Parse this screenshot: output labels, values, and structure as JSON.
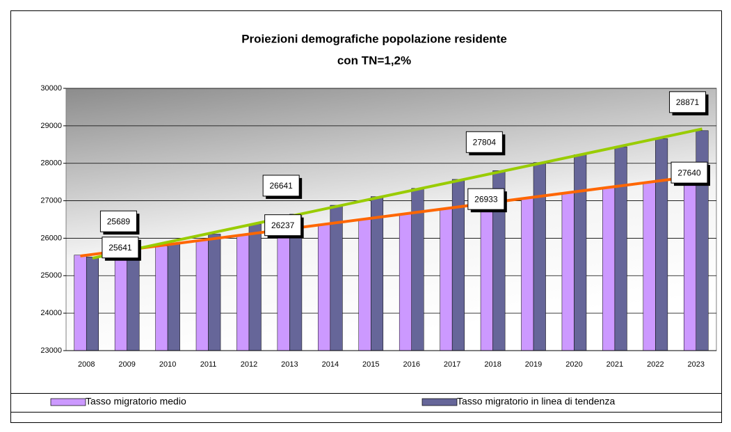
{
  "chart_data": {
    "type": "bar",
    "title": "Proiezioni demografiche popolazione residente",
    "subtitle": "con TN=1,2%",
    "categories": [
      "2008",
      "2009",
      "2010",
      "2011",
      "2012",
      "2013",
      "2014",
      "2015",
      "2016",
      "2017",
      "2018",
      "2019",
      "2020",
      "2021",
      "2022",
      "2023"
    ],
    "series": [
      {
        "name": "Tasso migratorio medio",
        "color": "#cc99ff",
        "trendline_color": "#ff6600",
        "values": [
          25550,
          25641,
          25790,
          25940,
          26090,
          26237,
          26380,
          26520,
          26660,
          26800,
          26933,
          27070,
          27210,
          27350,
          27495,
          27640
        ],
        "value_labels": [
          null,
          25641,
          null,
          null,
          null,
          26237,
          null,
          null,
          null,
          null,
          26933,
          null,
          null,
          null,
          null,
          27640
        ]
      },
      {
        "name": "Tasso migratorio in linea di tendenza",
        "color": "#666699",
        "trendline_color": "#99cc00",
        "values": [
          25500,
          25689,
          25850,
          26110,
          26380,
          26641,
          26880,
          27110,
          27330,
          27570,
          27804,
          28020,
          28230,
          28440,
          28660,
          28871
        ],
        "value_labels": [
          null,
          25689,
          null,
          null,
          null,
          26641,
          null,
          null,
          null,
          null,
          27804,
          null,
          null,
          null,
          null,
          28871
        ]
      }
    ],
    "ylim": [
      23000,
      30000
    ],
    "yticks": [
      23000,
      24000,
      25000,
      26000,
      27000,
      28000,
      29000,
      30000
    ],
    "grid": true,
    "trendline": true,
    "legend": "bottom"
  }
}
